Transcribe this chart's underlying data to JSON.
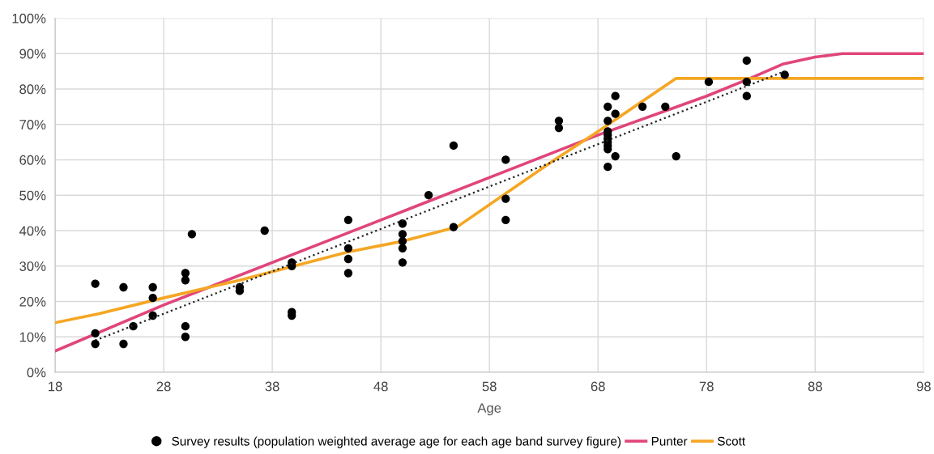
{
  "chart_data": {
    "type": "scatter",
    "xlabel": "Age",
    "xlim": [
      18,
      98
    ],
    "xticks": [
      18,
      28,
      38,
      48,
      58,
      68,
      78,
      88,
      98
    ],
    "ylim": [
      0,
      100
    ],
    "yticks": [
      {
        "value": 0,
        "label": "0%"
      },
      {
        "value": 10,
        "label": "10%"
      },
      {
        "value": 20,
        "label": "20%"
      },
      {
        "value": 30,
        "label": "30%"
      },
      {
        "value": 40,
        "label": "40%"
      },
      {
        "value": 50,
        "label": "50%"
      },
      {
        "value": 60,
        "label": "60%"
      },
      {
        "value": 70,
        "label": "70%"
      },
      {
        "value": 80,
        "label": "80%"
      },
      {
        "value": 90,
        "label": "90%"
      },
      {
        "value": 100,
        "label": "100%"
      }
    ],
    "grid": true,
    "legend": "bottom",
    "series": [
      {
        "name": "Survey results (population weighted average age for each age band survey figure)",
        "marker": "circle",
        "color": "#000000",
        "x": [
          21.7,
          21.7,
          21.7,
          24.3,
          24.3,
          25.2,
          27,
          27,
          27,
          30,
          30,
          30,
          30,
          30.6,
          35,
          35,
          37.3,
          39.8,
          39.8,
          39.8,
          39.8,
          45,
          45,
          45,
          45,
          50,
          50,
          50,
          50,
          50,
          52.4,
          54.7,
          54.7,
          59.5,
          59.5,
          59.5,
          64.4,
          64.4,
          68.9,
          68.9,
          68.9,
          68.9,
          68.9,
          68.9,
          68.9,
          68.9,
          68.9,
          69.6,
          69.6,
          69.6,
          72.1,
          74.2,
          75.2,
          78.2,
          81.7,
          81.7,
          81.7,
          85.2
        ],
        "values": [
          8,
          11,
          25,
          24,
          8,
          13,
          24,
          21,
          16,
          28,
          26,
          13,
          10,
          39,
          24,
          23,
          40,
          31,
          30,
          17,
          16,
          43,
          35,
          32,
          28,
          42,
          39,
          37,
          35,
          31,
          50,
          64,
          41,
          60,
          49,
          43,
          71,
          69,
          75,
          71,
          68,
          67,
          66,
          65,
          64,
          63,
          58,
          78,
          73,
          61,
          75,
          75,
          61,
          82,
          88,
          82,
          78,
          84
        ]
      },
      {
        "name": "Punter",
        "type": "line",
        "marker": "none",
        "line_style": "solid",
        "color": "#e0457b",
        "x": [
          18,
          28,
          38,
          48,
          58,
          68,
          78,
          82,
          85,
          88,
          90.5,
          98
        ],
        "values": [
          6,
          19,
          31,
          43,
          55,
          67,
          78,
          83,
          87,
          89,
          90,
          90
        ]
      },
      {
        "name": "Scott",
        "type": "line",
        "marker": "none",
        "line_style": "solid",
        "color": "#f5a623",
        "x": [
          18,
          22,
          28,
          35,
          40,
          45,
          50,
          55,
          64,
          68,
          75.2,
          98
        ],
        "values": [
          14,
          16.5,
          21,
          26,
          30,
          34,
          37,
          41,
          60,
          68,
          83,
          83
        ]
      },
      {
        "type": "line",
        "marker": "none",
        "line_style": "dotted",
        "color": "#222222",
        "x": [
          21.7,
          85.2
        ],
        "values": [
          9,
          85
        ]
      }
    ]
  }
}
